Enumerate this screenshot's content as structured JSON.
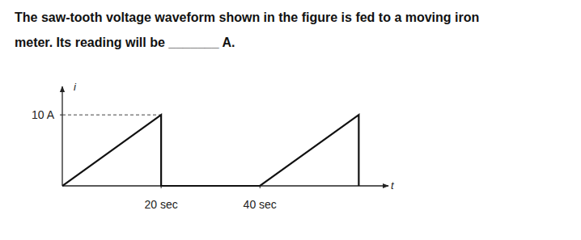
{
  "question": {
    "lines": [
      "The saw-tooth voltage waveform shown in the figure is fed to a moving iron",
      "meter. Its reading will be _______ A."
    ]
  },
  "chart_data": {
    "type": "line",
    "x_label": "t",
    "y_label": "i",
    "x": [
      0,
      20,
      20,
      40,
      60,
      60
    ],
    "values": [
      0,
      10,
      0,
      0,
      10,
      0
    ],
    "color": "#111111",
    "xlim": [
      0,
      66
    ],
    "ylim": [
      0,
      14
    ],
    "xticks": [
      {
        "value": 20,
        "label": "20 sec"
      },
      {
        "value": 40,
        "label": "40 sec"
      }
    ],
    "yticks": [
      {
        "value": 10,
        "label": "10 A"
      }
    ],
    "grid": false
  }
}
